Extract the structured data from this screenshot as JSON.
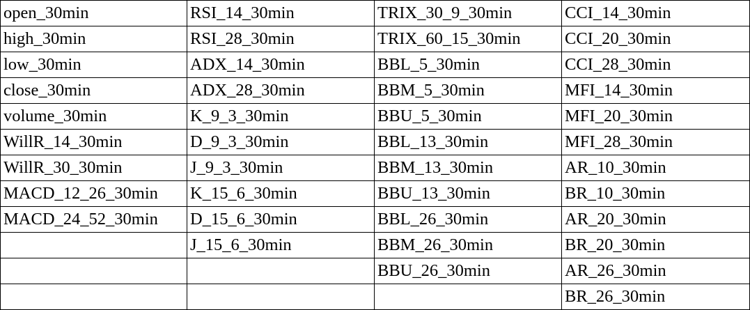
{
  "table": {
    "columns": [
      [
        "open_30min",
        "high_30min",
        "low_30min",
        "close_30min",
        "volume_30min",
        "WillR_14_30min",
        "WillR_30_30min",
        "MACD_12_26_30min",
        "MACD_24_52_30min",
        "",
        "",
        ""
      ],
      [
        "RSI_14_30min",
        "RSI_28_30min",
        "ADX_14_30min",
        "ADX_28_30min",
        "K_9_3_30min",
        "D_9_3_30min",
        "J_9_3_30min",
        "K_15_6_30min",
        "D_15_6_30min",
        "J_15_6_30min",
        "",
        ""
      ],
      [
        "TRIX_30_9_30min",
        "TRIX_60_15_30min",
        "BBL_5_30min",
        "BBM_5_30min",
        "BBU_5_30min",
        "BBL_13_30min",
        "BBM_13_30min",
        "BBU_13_30min",
        "BBL_26_30min",
        "BBM_26_30min",
        "BBU_26_30min",
        ""
      ],
      [
        "CCI_14_30min",
        "CCI_20_30min",
        "CCI_28_30min",
        "MFI_14_30min",
        "MFI_20_30min",
        "MFI_28_30min",
        "AR_10_30min",
        "BR_10_30min",
        "AR_20_30min",
        "BR_20_30min",
        "AR_26_30min",
        "BR_26_30min"
      ]
    ]
  }
}
